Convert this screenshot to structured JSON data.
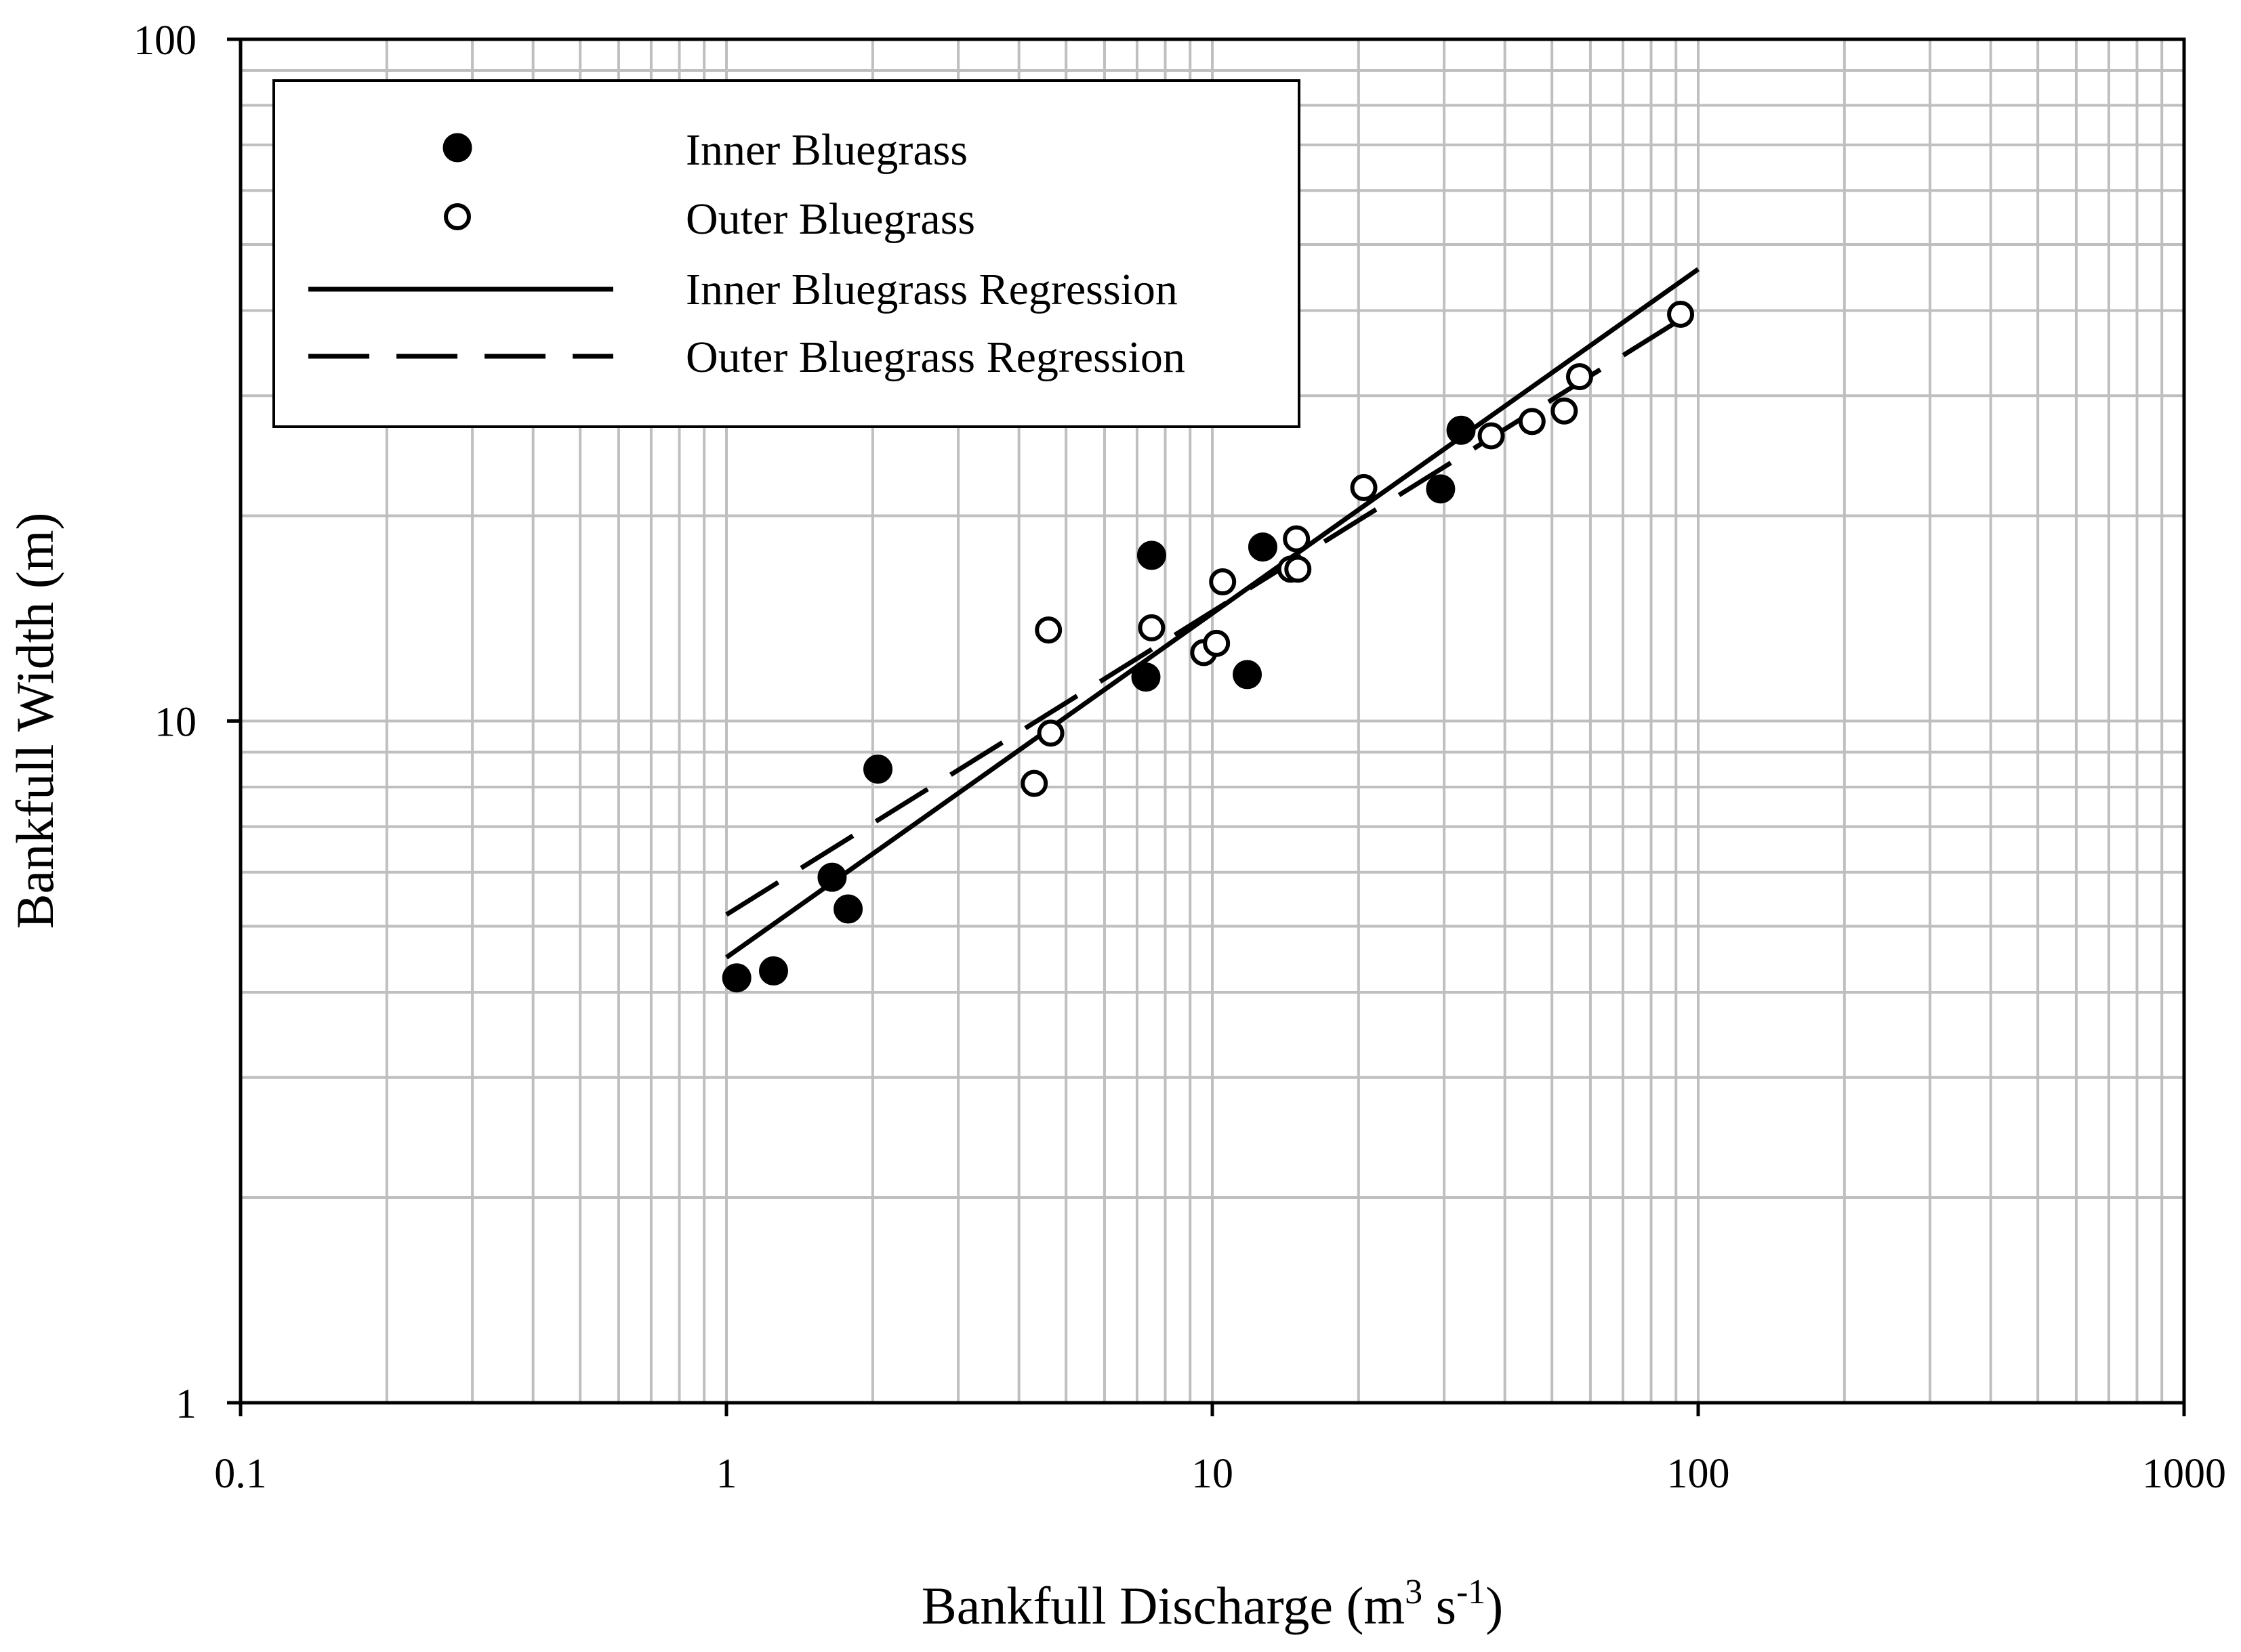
{
  "chart_data": {
    "type": "scatter",
    "xscale": "log",
    "yscale": "log",
    "xlim": [
      0.1,
      1000
    ],
    "ylim": [
      1,
      100
    ],
    "grid": true,
    "legend_placement": "top-left",
    "xlabel": {
      "main": "Bankfull Discharge (m",
      "sup1": "3",
      "mid": " s",
      "sup2": "-1",
      "end": ")"
    },
    "ylabel": "Bankfull Width (m)",
    "x_ticks": [
      {
        "value": 0.1,
        "label": "0.1"
      },
      {
        "value": 1,
        "label": "1"
      },
      {
        "value": 10,
        "label": "10"
      },
      {
        "value": 100,
        "label": "100"
      },
      {
        "value": 1000,
        "label": "1000"
      }
    ],
    "y_ticks": [
      {
        "value": 1,
        "label": "1"
      },
      {
        "value": 10,
        "label": "10"
      },
      {
        "value": 100,
        "label": "100"
      }
    ],
    "series": [
      {
        "name": "Inner Bluegrass",
        "marker": "filled-circle",
        "points": [
          [
            1.05,
            4.2
          ],
          [
            1.25,
            4.3
          ],
          [
            1.65,
            5.9
          ],
          [
            1.78,
            5.3
          ],
          [
            2.05,
            8.5
          ],
          [
            7.3,
            11.6
          ],
          [
            7.5,
            17.5
          ],
          [
            11.8,
            11.7
          ],
          [
            12.7,
            18.0
          ],
          [
            29.5,
            21.9
          ],
          [
            32.5,
            26.7
          ]
        ]
      },
      {
        "name": "Outer Bluegrass",
        "marker": "open-circle",
        "points": [
          [
            4.3,
            8.1
          ],
          [
            4.6,
            13.6
          ],
          [
            4.65,
            9.6
          ],
          [
            7.5,
            13.7
          ],
          [
            9.6,
            12.6
          ],
          [
            10.2,
            13.0
          ],
          [
            10.5,
            16.0
          ],
          [
            14.5,
            16.7
          ],
          [
            14.9,
            18.5
          ],
          [
            15.0,
            16.7
          ],
          [
            20.5,
            22.0
          ],
          [
            37.5,
            26.2
          ],
          [
            45.5,
            27.5
          ],
          [
            53.0,
            28.5
          ],
          [
            57.0,
            32.0
          ],
          [
            92.0,
            39.5
          ]
        ]
      },
      {
        "name": "Inner Bluegrass Regression",
        "line_style": "solid",
        "points": [
          [
            1.0,
            4.5
          ],
          [
            100,
            46.0
          ]
        ]
      },
      {
        "name": "Outer Bluegrass Regression",
        "line_style": "dashed",
        "points": [
          [
            1.0,
            5.2
          ],
          [
            93,
            39.0
          ]
        ]
      }
    ]
  }
}
